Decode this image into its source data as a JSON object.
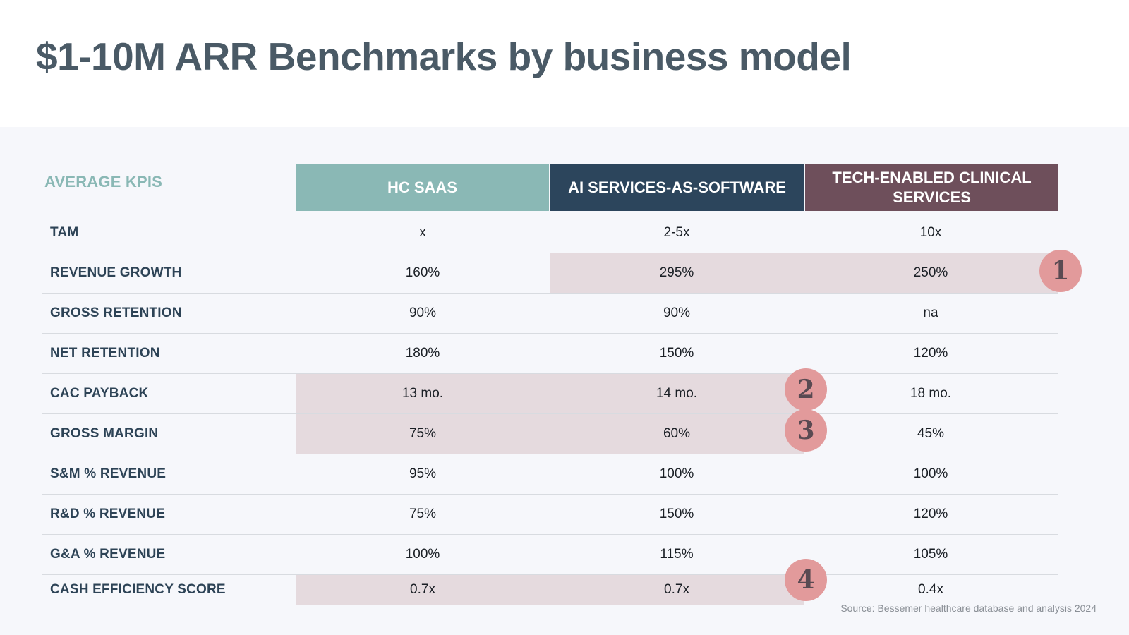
{
  "title": "$1-10M ARR Benchmarks by business model",
  "table": {
    "corner_label": "AVERAGE KPIS",
    "columns": [
      {
        "label": "HC SAAS",
        "color": "#8ab8b5"
      },
      {
        "label": "AI SERVICES-AS-SOFTWARE",
        "color": "#2c455c"
      },
      {
        "label": "TECH-ENABLED CLINICAL SERVICES",
        "color": "#6e4f5b"
      }
    ],
    "rows": [
      {
        "label": "TAM",
        "values": [
          "x",
          "2-5x",
          "10x"
        ]
      },
      {
        "label": "REVENUE GROWTH",
        "values": [
          "160%",
          "295%",
          "250%"
        ]
      },
      {
        "label": "GROSS RETENTION",
        "values": [
          "90%",
          "90%",
          "na"
        ]
      },
      {
        "label": "NET RETENTION",
        "values": [
          "180%",
          "150%",
          "120%"
        ]
      },
      {
        "label": "CAC PAYBACK",
        "values": [
          "13 mo.",
          "14 mo.",
          "18 mo."
        ]
      },
      {
        "label": "GROSS MARGIN",
        "values": [
          "75%",
          "60%",
          "45%"
        ]
      },
      {
        "label": "S&M % REVENUE",
        "values": [
          "95%",
          "100%",
          "100%"
        ]
      },
      {
        "label": "R&D % REVENUE",
        "values": [
          "75%",
          "150%",
          "120%"
        ]
      },
      {
        "label": "G&A % REVENUE",
        "values": [
          "100%",
          "115%",
          "105%"
        ]
      },
      {
        "label": "CASH EFFICIENCY SCORE",
        "values": [
          "0.7x",
          "0.7x",
          "0.4x"
        ]
      }
    ]
  },
  "badges": [
    "1",
    "2",
    "3",
    "4"
  ],
  "highlight_color": "#e5dade",
  "badge_color": "#e29a9b",
  "source": "Source: Bessemer healthcare database and analysis 2024"
}
